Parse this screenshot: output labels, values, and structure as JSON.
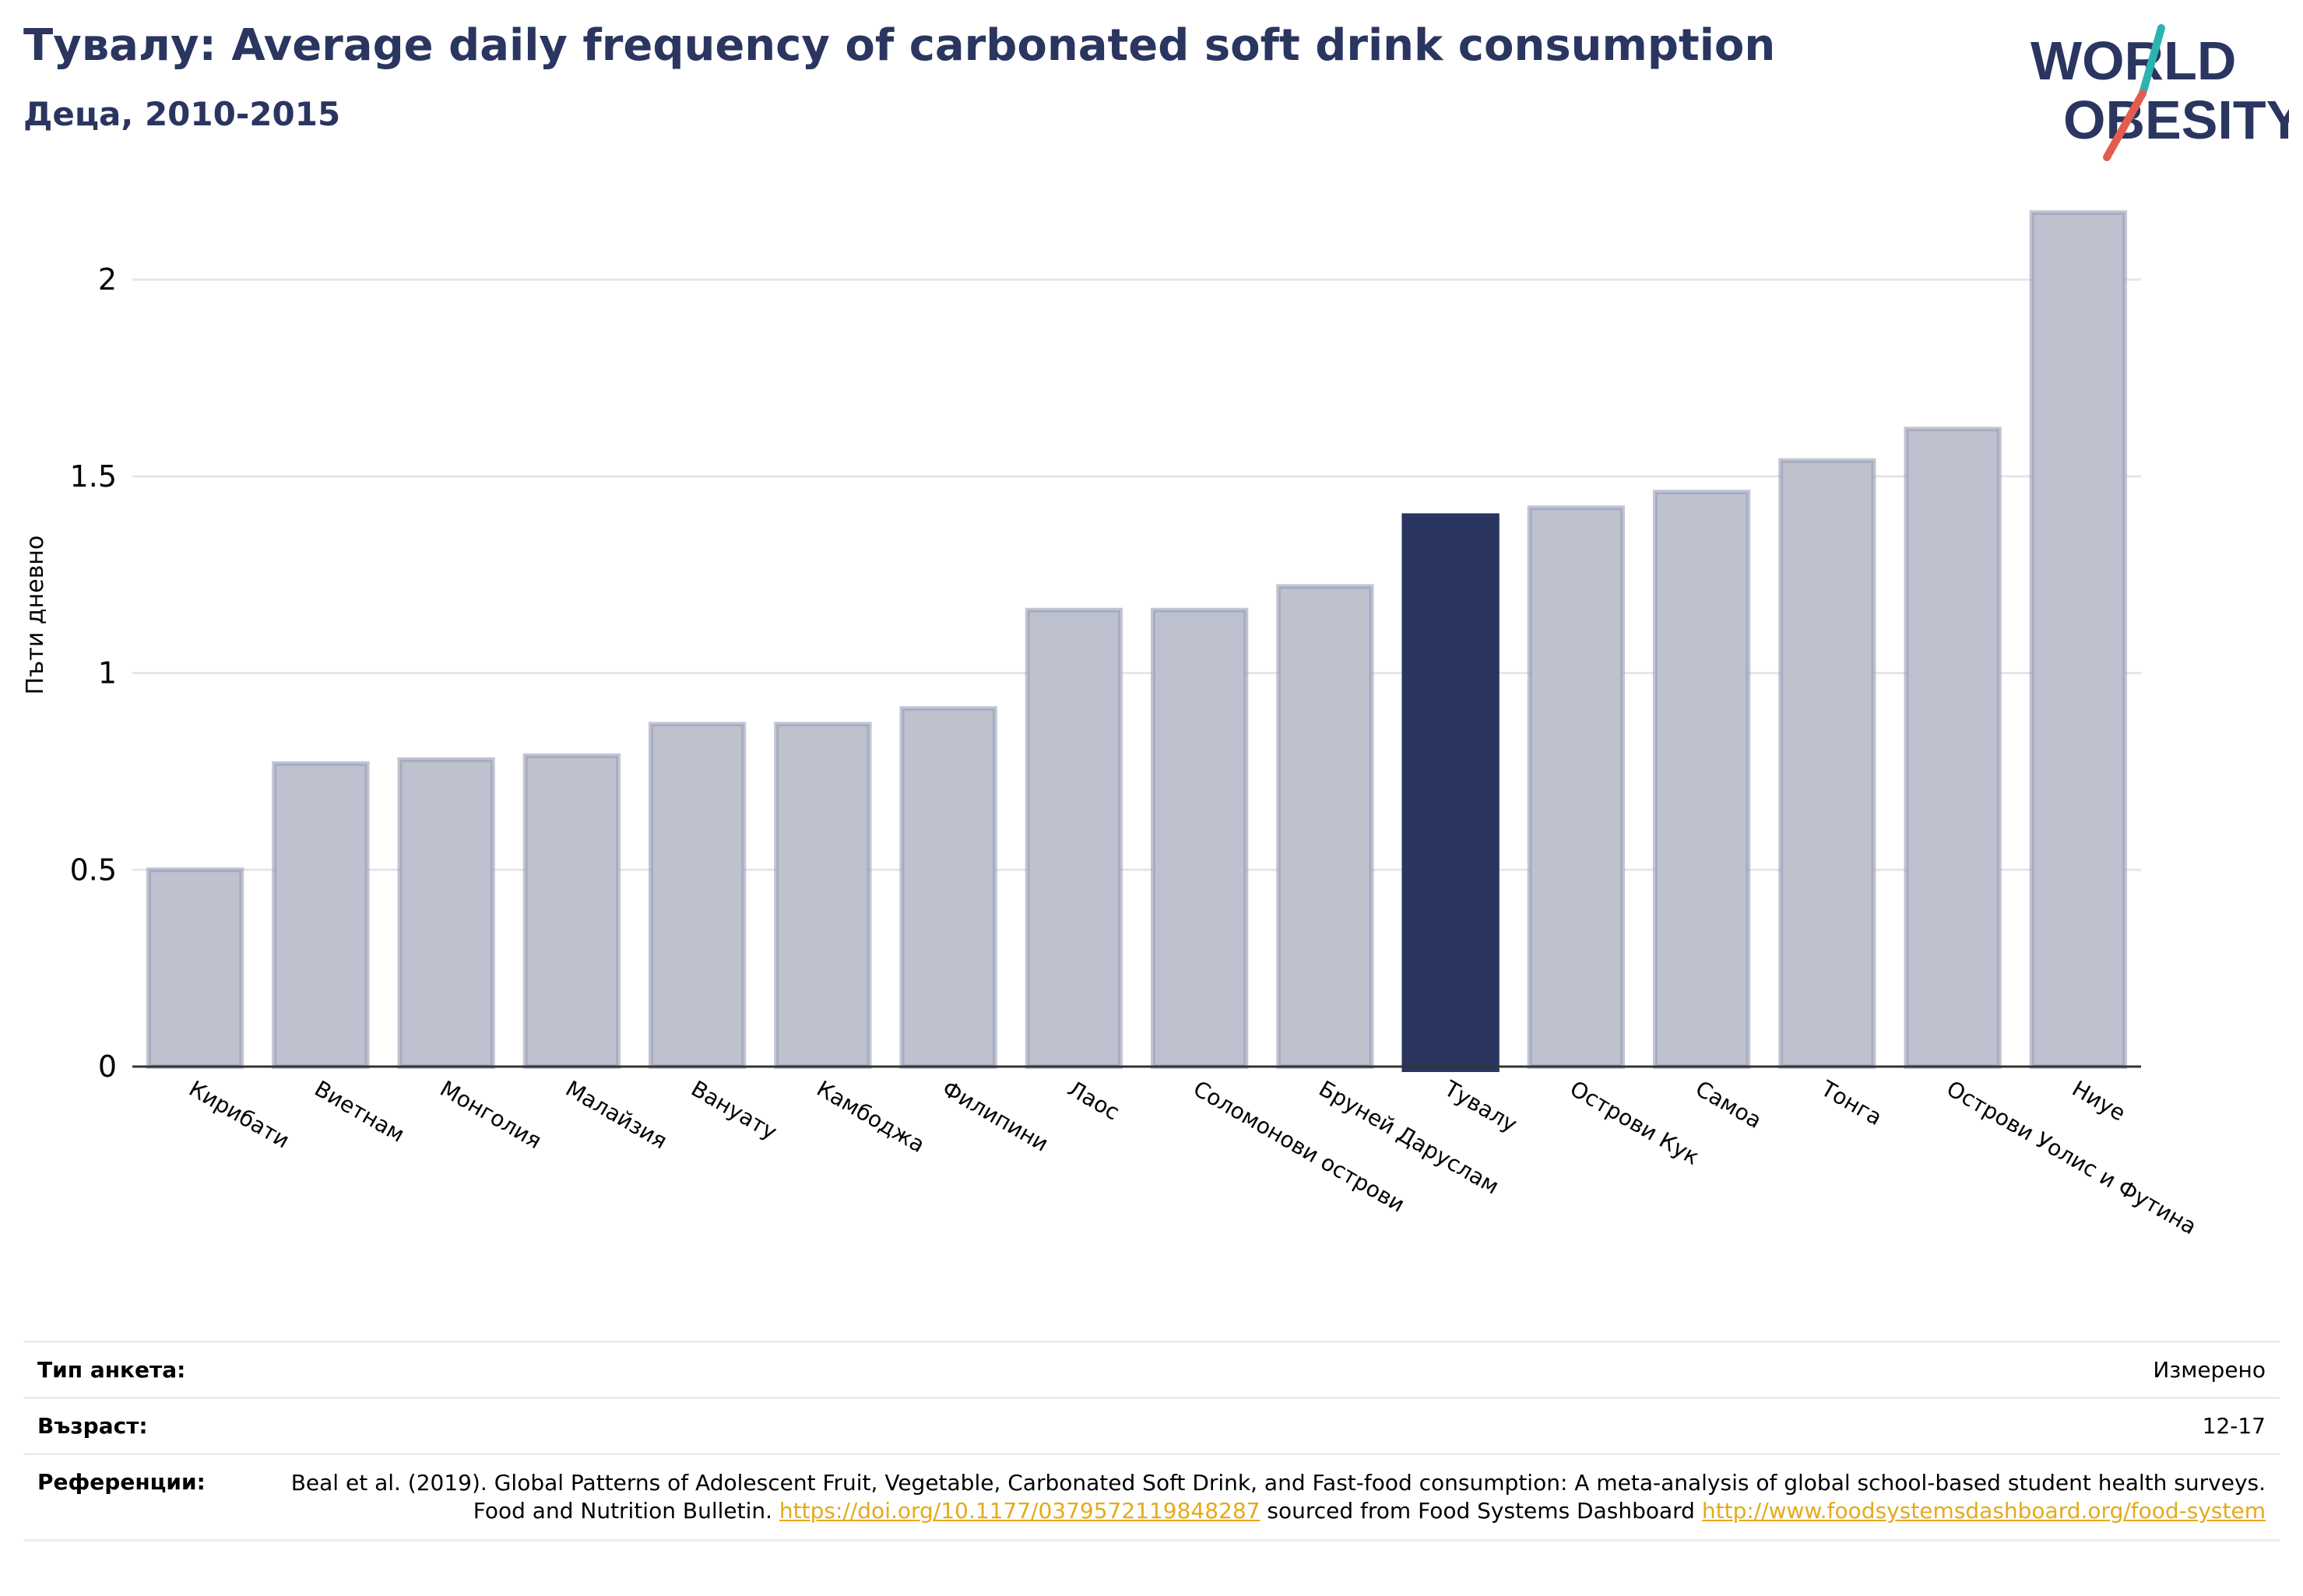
{
  "header": {
    "title": "Тувалу: Average daily frequency of carbonated soft drink consumption",
    "subtitle": "Деца, 2010-2015"
  },
  "logo": {
    "line1": "WORLD",
    "line2": "OBESITY",
    "icon": "world-obesity-logo"
  },
  "chart_data": {
    "type": "bar",
    "title": "Тувалу: Average daily frequency of carbonated soft drink consumption",
    "subtitle": "Деца, 2010-2015",
    "ylabel": "Пъти дневно",
    "xlabel": "",
    "ylim": [
      0,
      2.2
    ],
    "yticks": [
      0,
      0.5,
      1,
      1.5,
      2
    ],
    "ytick_labels": [
      "0",
      "0.5",
      "1",
      "1.5",
      "2"
    ],
    "grid": true,
    "categories": [
      "Кирибати",
      "Виетнам",
      "Монголия",
      "Малайзия",
      "Вануату",
      "Камбоджа",
      "Филипини",
      "Лаос",
      "Соломонови острови",
      "Бруней Даруслам",
      "Тувалу",
      "Острови Кук",
      "Самоа",
      "Тонга",
      "Острови Уолис и Футина",
      "Ниуе"
    ],
    "values": [
      0.5,
      0.77,
      0.78,
      0.79,
      0.87,
      0.87,
      0.91,
      1.16,
      1.16,
      1.22,
      1.4,
      1.42,
      1.46,
      1.54,
      1.62,
      2.17
    ],
    "highlight": "Тувалу",
    "colors": {
      "bar": "#bec1ce",
      "bar_border": "#9a9fb8",
      "highlight": "#2a3560"
    }
  },
  "info": {
    "survey_label": "Тип анкета:",
    "survey_value": "Измерено",
    "age_label": "Възраст:",
    "age_value": "12-17",
    "refs_label": "Референции:",
    "refs_text_1": "Beal et al. (2019). Global Patterns of Adolescent Fruit, Vegetable, Carbonated Soft Drink, and Fast-food consumption: A meta-analysis of global school-based student health surveys. Food and Nutrition Bulletin.",
    "refs_link_1": "https://doi.org/10.1177/0379572119848287",
    "refs_text_2": "sourced from Food Systems Dashboard",
    "refs_link_2": "http://www.foodsystemsdashboard.org/food-system"
  }
}
